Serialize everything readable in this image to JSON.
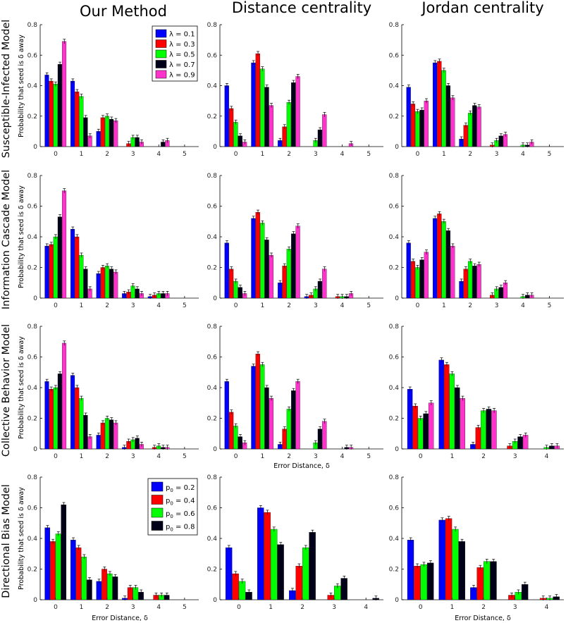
{
  "figure": {
    "column_titles": [
      "Our Method",
      "Distance centrality",
      "Jordan centrality"
    ],
    "row_titles": [
      "Susceptible-Infected Model",
      "Information Cascade Model",
      "Collective Behavior Model",
      "Directional Bias Model"
    ],
    "ylabel": "Probability that seed is δ away",
    "xlabel": "Error Distance, δ"
  },
  "colors": {
    "s1": "#0000ff",
    "s2": "#ff0000",
    "s3": "#00ff00",
    "s4": "#000019",
    "s5": "#ff33cc",
    "axis": "#000000"
  },
  "legends": {
    "lambda": [
      "λ = 0.1",
      "λ = 0.3",
      "λ = 0.5",
      "λ = 0.7",
      "λ = 0.9"
    ],
    "p0": [
      {
        "prefix": "p",
        "sub": "0",
        "suffix": " = 0.2"
      },
      {
        "prefix": "p",
        "sub": "0",
        "suffix": " = 0.4"
      },
      {
        "prefix": "p",
        "sub": "0",
        "suffix": " = 0.6"
      },
      {
        "prefix": "p",
        "sub": "0",
        "suffix": " = 0.8"
      }
    ]
  },
  "chart_data": [
    {
      "type": "bar",
      "row": "Susceptible-Infected Model",
      "method": "Our Method",
      "categories": [
        "0",
        "1",
        "2",
        "3",
        "4",
        "5"
      ],
      "ylim": [
        0,
        0.8
      ],
      "yticks": [
        0,
        0.2,
        0.4,
        0.6,
        0.8
      ],
      "legend": "lambda",
      "series": [
        {
          "name": "λ = 0.1",
          "values": [
            0.47,
            0.43,
            0.1,
            0.0,
            0.0,
            0.0
          ]
        },
        {
          "name": "λ = 0.3",
          "values": [
            0.43,
            0.36,
            0.19,
            0.02,
            0.0,
            0.0
          ]
        },
        {
          "name": "λ = 0.5",
          "values": [
            0.41,
            0.33,
            0.2,
            0.06,
            0.0,
            0.0
          ]
        },
        {
          "name": "λ = 0.7",
          "values": [
            0.54,
            0.19,
            0.18,
            0.06,
            0.03,
            0.0
          ]
        },
        {
          "name": "λ = 0.9",
          "values": [
            0.69,
            0.07,
            0.17,
            0.03,
            0.04,
            0.0
          ]
        }
      ]
    },
    {
      "type": "bar",
      "row": "Susceptible-Infected Model",
      "method": "Distance centrality",
      "categories": [
        "0",
        "1",
        "2",
        "3",
        "4",
        "5"
      ],
      "ylim": [
        0,
        0.8
      ],
      "yticks": [
        0,
        0.2,
        0.4,
        0.6,
        0.8
      ],
      "series": [
        {
          "name": "λ = 0.1",
          "values": [
            0.4,
            0.55,
            0.04,
            0.0,
            0.0,
            0.0
          ]
        },
        {
          "name": "λ = 0.3",
          "values": [
            0.25,
            0.61,
            0.13,
            0.0,
            0.0,
            0.0
          ]
        },
        {
          "name": "λ = 0.5",
          "values": [
            0.16,
            0.51,
            0.29,
            0.04,
            0.0,
            0.0
          ]
        },
        {
          "name": "λ = 0.7",
          "values": [
            0.07,
            0.39,
            0.42,
            0.11,
            0.0,
            0.0
          ]
        },
        {
          "name": "λ = 0.9",
          "values": [
            0.03,
            0.27,
            0.46,
            0.21,
            0.02,
            0.0
          ]
        }
      ]
    },
    {
      "type": "bar",
      "row": "Susceptible-Infected Model",
      "method": "Jordan centrality",
      "categories": [
        "0",
        "1",
        "2",
        "3",
        "4",
        "5"
      ],
      "ylim": [
        0,
        0.8
      ],
      "yticks": [
        0,
        0.2,
        0.4,
        0.6,
        0.8
      ],
      "series": [
        {
          "name": "λ = 0.1",
          "values": [
            0.39,
            0.55,
            0.05,
            0.0,
            0.0,
            0.0
          ]
        },
        {
          "name": "λ = 0.3",
          "values": [
            0.28,
            0.56,
            0.14,
            0.01,
            0.0,
            0.0
          ]
        },
        {
          "name": "λ = 0.5",
          "values": [
            0.23,
            0.5,
            0.22,
            0.04,
            0.01,
            0.0
          ]
        },
        {
          "name": "λ = 0.7",
          "values": [
            0.24,
            0.4,
            0.27,
            0.07,
            0.01,
            0.0
          ]
        },
        {
          "name": "λ = 0.9",
          "values": [
            0.3,
            0.32,
            0.26,
            0.08,
            0.03,
            0.0
          ]
        }
      ]
    },
    {
      "type": "bar",
      "row": "Information Cascade Model",
      "method": "Our Method",
      "categories": [
        "0",
        "1",
        "2",
        "3",
        "4",
        "5"
      ],
      "ylim": [
        0,
        0.8
      ],
      "yticks": [
        0,
        0.2,
        0.4,
        0.6,
        0.8
      ],
      "series": [
        {
          "name": "λ = 0.1",
          "values": [
            0.34,
            0.45,
            0.16,
            0.03,
            0.01,
            0.0
          ]
        },
        {
          "name": "λ = 0.3",
          "values": [
            0.35,
            0.4,
            0.2,
            0.04,
            0.02,
            0.0
          ]
        },
        {
          "name": "λ = 0.5",
          "values": [
            0.4,
            0.28,
            0.21,
            0.08,
            0.03,
            0.0
          ]
        },
        {
          "name": "λ = 0.7",
          "values": [
            0.53,
            0.19,
            0.19,
            0.06,
            0.03,
            0.0
          ]
        },
        {
          "name": "λ = 0.9",
          "values": [
            0.7,
            0.06,
            0.17,
            0.03,
            0.03,
            0.0
          ]
        }
      ]
    },
    {
      "type": "bar",
      "row": "Information Cascade Model",
      "method": "Distance centrality",
      "categories": [
        "0",
        "1",
        "2",
        "3",
        "4",
        "5"
      ],
      "ylim": [
        0,
        0.8
      ],
      "yticks": [
        0,
        0.2,
        0.4,
        0.6,
        0.8
      ],
      "series": [
        {
          "name": "λ = 0.1",
          "values": [
            0.36,
            0.52,
            0.1,
            0.01,
            0.0,
            0.0
          ]
        },
        {
          "name": "λ = 0.3",
          "values": [
            0.19,
            0.56,
            0.21,
            0.02,
            0.01,
            0.0
          ]
        },
        {
          "name": "λ = 0.5",
          "values": [
            0.11,
            0.49,
            0.32,
            0.06,
            0.01,
            0.0
          ]
        },
        {
          "name": "λ = 0.7",
          "values": [
            0.07,
            0.38,
            0.42,
            0.11,
            0.01,
            0.0
          ]
        },
        {
          "name": "λ = 0.9",
          "values": [
            0.03,
            0.28,
            0.47,
            0.19,
            0.03,
            0.0
          ]
        }
      ]
    },
    {
      "type": "bar",
      "row": "Information Cascade Model",
      "method": "Jordan centrality",
      "categories": [
        "0",
        "1",
        "2",
        "3",
        "4",
        "5"
      ],
      "ylim": [
        0,
        0.8
      ],
      "yticks": [
        0,
        0.2,
        0.4,
        0.6,
        0.8
      ],
      "series": [
        {
          "name": "λ = 0.1",
          "values": [
            0.36,
            0.52,
            0.11,
            0.0,
            0.0,
            0.0
          ]
        },
        {
          "name": "λ = 0.3",
          "values": [
            0.24,
            0.55,
            0.19,
            0.02,
            0.0,
            0.0
          ]
        },
        {
          "name": "λ = 0.5",
          "values": [
            0.2,
            0.5,
            0.24,
            0.06,
            0.01,
            0.0
          ]
        },
        {
          "name": "λ = 0.7",
          "values": [
            0.25,
            0.44,
            0.21,
            0.07,
            0.02,
            0.0
          ]
        },
        {
          "name": "λ = 0.9",
          "values": [
            0.3,
            0.34,
            0.22,
            0.1,
            0.02,
            0.0
          ]
        }
      ]
    },
    {
      "type": "bar",
      "row": "Collective Behavior Model",
      "method": "Our Method",
      "categories": [
        "0",
        "1",
        "2",
        "3",
        "4",
        "5"
      ],
      "ylim": [
        0,
        0.8
      ],
      "yticks": [
        0,
        0.2,
        0.4,
        0.6,
        0.8
      ],
      "series": [
        {
          "name": "λ = 0.1",
          "values": [
            0.44,
            0.48,
            0.09,
            0.01,
            0.0,
            0.0
          ]
        },
        {
          "name": "λ = 0.3",
          "values": [
            0.39,
            0.4,
            0.17,
            0.05,
            0.01,
            0.0
          ]
        },
        {
          "name": "λ = 0.5",
          "values": [
            0.4,
            0.33,
            0.2,
            0.06,
            0.02,
            0.0
          ]
        },
        {
          "name": "λ = 0.7",
          "values": [
            0.49,
            0.22,
            0.19,
            0.07,
            0.01,
            0.0
          ]
        },
        {
          "name": "λ = 0.9",
          "values": [
            0.69,
            0.08,
            0.17,
            0.03,
            0.01,
            0.0
          ]
        }
      ]
    },
    {
      "type": "bar",
      "row": "Collective Behavior Model",
      "method": "Distance centrality",
      "categories": [
        "0",
        "1",
        "2",
        "3",
        "4",
        "5"
      ],
      "ylim": [
        0,
        0.8
      ],
      "yticks": [
        0,
        0.2,
        0.4,
        0.6,
        0.8
      ],
      "xlabel": true,
      "series": [
        {
          "name": "λ = 0.1",
          "values": [
            0.44,
            0.54,
            0.03,
            0.0,
            0.0,
            0.0
          ]
        },
        {
          "name": "λ = 0.3",
          "values": [
            0.24,
            0.62,
            0.13,
            0.0,
            0.0,
            0.0
          ]
        },
        {
          "name": "λ = 0.5",
          "values": [
            0.15,
            0.55,
            0.26,
            0.04,
            0.0,
            0.0
          ]
        },
        {
          "name": "λ = 0.7",
          "values": [
            0.08,
            0.4,
            0.38,
            0.13,
            0.01,
            0.0
          ]
        },
        {
          "name": "λ = 0.9",
          "values": [
            0.04,
            0.33,
            0.44,
            0.18,
            0.01,
            0.0
          ]
        }
      ]
    },
    {
      "type": "bar",
      "row": "Collective Behavior Model",
      "method": "Jordan centrality",
      "categories": [
        "0",
        "1",
        "2",
        "3",
        "4"
      ],
      "ylim": [
        0,
        0.8
      ],
      "yticks": [
        0,
        0.2,
        0.4,
        0.6,
        0.8
      ],
      "series": [
        {
          "name": "λ = 0.1",
          "values": [
            0.39,
            0.58,
            0.03,
            0.0,
            0.0
          ]
        },
        {
          "name": "λ = 0.3",
          "values": [
            0.28,
            0.55,
            0.14,
            0.02,
            0.0
          ]
        },
        {
          "name": "λ = 0.5",
          "values": [
            0.2,
            0.49,
            0.25,
            0.05,
            0.01
          ]
        },
        {
          "name": "λ = 0.7",
          "values": [
            0.23,
            0.4,
            0.26,
            0.08,
            0.02
          ]
        },
        {
          "name": "λ = 0.9",
          "values": [
            0.3,
            0.33,
            0.25,
            0.09,
            0.02
          ]
        }
      ]
    },
    {
      "type": "bar",
      "row": "Directional Bias Model",
      "method": "Our Method",
      "categories": [
        "0",
        "1",
        "2",
        "3",
        "4",
        "5"
      ],
      "ylim": [
        0,
        0.8
      ],
      "yticks": [
        0,
        0.2,
        0.4,
        0.6,
        0.8
      ],
      "legend": "p0",
      "xlabel": true,
      "series": [
        {
          "name": "p0 = 0.2",
          "values": [
            0.47,
            0.39,
            0.12,
            0.01,
            0.0,
            0.0
          ]
        },
        {
          "name": "p0 = 0.4",
          "values": [
            0.38,
            0.34,
            0.2,
            0.08,
            0.03,
            0.0
          ]
        },
        {
          "name": "p0 = 0.6",
          "values": [
            0.43,
            0.28,
            0.17,
            0.08,
            0.03,
            0.0
          ]
        },
        {
          "name": "p0 = 0.8",
          "values": [
            0.62,
            0.13,
            0.15,
            0.05,
            0.03,
            0.0
          ]
        }
      ]
    },
    {
      "type": "bar",
      "row": "Directional Bias Model",
      "method": "Distance centrality",
      "categories": [
        "0",
        "1",
        "2",
        "3",
        "4"
      ],
      "ylim": [
        0,
        0.8
      ],
      "yticks": [
        0,
        0.2,
        0.4,
        0.6,
        0.8
      ],
      "series": [
        {
          "name": "p0 = 0.2",
          "values": [
            0.34,
            0.6,
            0.06,
            0.0,
            0.0
          ]
        },
        {
          "name": "p0 = 0.4",
          "values": [
            0.17,
            0.57,
            0.22,
            0.03,
            0.0
          ]
        },
        {
          "name": "p0 = 0.6",
          "values": [
            0.12,
            0.46,
            0.34,
            0.09,
            0.0
          ]
        },
        {
          "name": "p0 = 0.8",
          "values": [
            0.05,
            0.36,
            0.44,
            0.14,
            0.01
          ]
        }
      ]
    },
    {
      "type": "bar",
      "row": "Directional Bias Model",
      "method": "Jordan centrality",
      "categories": [
        "0",
        "1",
        "2",
        "3",
        "4"
      ],
      "ylim": [
        0,
        0.8
      ],
      "yticks": [
        0,
        0.2,
        0.4,
        0.6,
        0.8
      ],
      "xlabel": true,
      "series": [
        {
          "name": "p0 = 0.2",
          "values": [
            0.39,
            0.52,
            0.08,
            0.0,
            0.0
          ]
        },
        {
          "name": "p0 = 0.4",
          "values": [
            0.22,
            0.53,
            0.21,
            0.03,
            0.01
          ]
        },
        {
          "name": "p0 = 0.6",
          "values": [
            0.23,
            0.46,
            0.25,
            0.05,
            0.01
          ]
        },
        {
          "name": "p0 = 0.8",
          "values": [
            0.24,
            0.38,
            0.25,
            0.1,
            0.02
          ]
        }
      ]
    }
  ]
}
